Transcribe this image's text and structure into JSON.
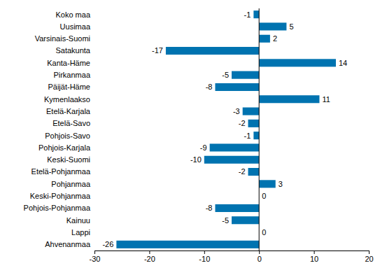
{
  "chart_data": {
    "type": "bar",
    "orientation": "horizontal",
    "categories": [
      "Koko maa",
      "Uusimaa",
      "Varsinais-Suomi",
      "Satakunta",
      "Kanta-Häme",
      "Pirkanmaa",
      "Päijät-Häme",
      "Kymenlaakso",
      "Etelä-Karjala",
      "Etelä-Savo",
      "Pohjois-Savo",
      "Pohjois-Karjala",
      "Keski-Suomi",
      "Etelä-Pohjanmaa",
      "Pohjanmaa",
      "Keski-Pohjanmaa",
      "Pohjois-Pohjanmaa",
      "Kainuu",
      "Lappi",
      "Ahvenanmaa"
    ],
    "values": [
      -1,
      5,
      2,
      -17,
      14,
      -5,
      -8,
      11,
      -3,
      -2,
      -1,
      -9,
      -10,
      -2,
      3,
      0,
      -8,
      -5,
      0,
      -26
    ],
    "color": "#0073b0",
    "xlim": [
      -30,
      20
    ],
    "xticks": [
      -30,
      -20,
      -10,
      0,
      10,
      20
    ],
    "grid": false,
    "data_labels": true
  }
}
